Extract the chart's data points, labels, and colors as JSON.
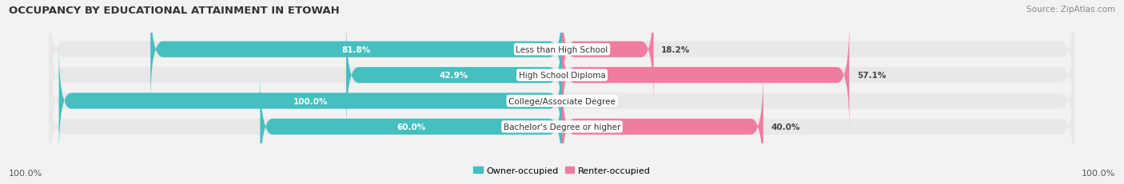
{
  "title": "OCCUPANCY BY EDUCATIONAL ATTAINMENT IN ETOWAH",
  "source": "Source: ZipAtlas.com",
  "categories": [
    "Less than High School",
    "High School Diploma",
    "College/Associate Degree",
    "Bachelor's Degree or higher"
  ],
  "owner_pct": [
    81.8,
    42.9,
    100.0,
    60.0
  ],
  "renter_pct": [
    18.2,
    57.1,
    0.0,
    40.0
  ],
  "owner_color": "#45bfbf",
  "renter_color": "#f07da0",
  "bg_color": "#f2f2f2",
  "row_bg_color": "#e8e8e8",
  "bar_height": 0.62,
  "x_left_label": "100.0%",
  "x_right_label": "100.0%",
  "legend_owner": "Owner-occupied",
  "legend_renter": "Renter-occupied",
  "title_fontsize": 9.5,
  "source_fontsize": 7.5,
  "label_fontsize": 8,
  "cat_fontsize": 7.5,
  "pct_fontsize": 7.5
}
